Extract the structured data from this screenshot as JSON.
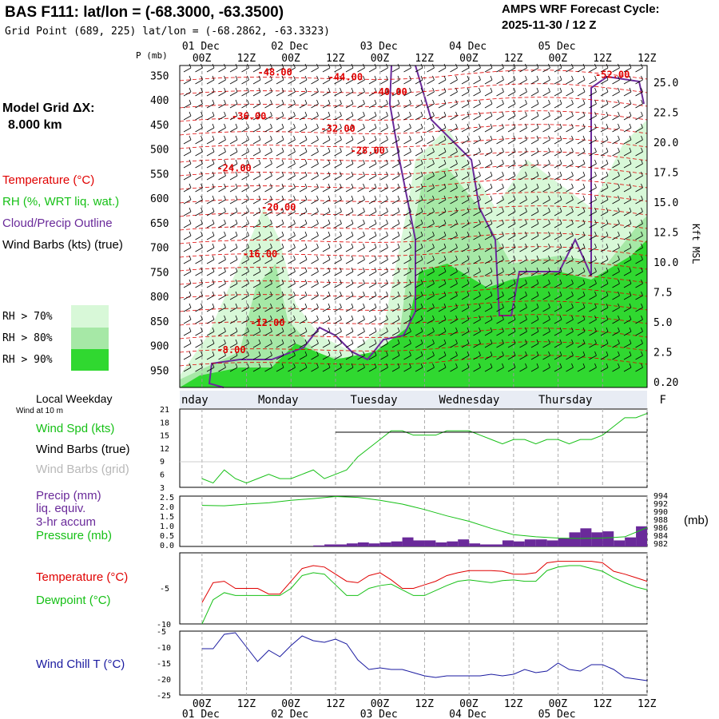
{
  "header": {
    "title": "BAS F111:  lat/lon = (-68.3000, -63.3500)",
    "grid_point": "Grid Point (689, 225) lat/lon = (-68.2862, -63.3323)",
    "cycle_label": "AMPS WRF Forecast Cycle:",
    "cycle_value": "2025-11-30 / 12  Z"
  },
  "left_panel": {
    "model_grid": "Model Grid ΔX:",
    "model_grid_value": "8.000 km",
    "legend_temperature": "Temperature (°C)",
    "legend_rh": "RH (%, WRT liq. wat.)",
    "legend_cloud": "Cloud/Precip Outline",
    "legend_wind": "Wind Barbs (kts) (true)",
    "rh70": "RH > 70%",
    "rh80": "RH > 80%",
    "rh90": "RH > 90%",
    "local_weekday": "Local Weekday",
    "wind_10m": "Wind at 10 m",
    "wind_spd": "Wind Spd (kts)",
    "barbs_true": "Wind Barbs (true)",
    "barbs_grid": "Wind Barbs (grid)",
    "precip1": "Precip (mm)",
    "precip2": "liq. equiv.",
    "precip3": "3-hr accum",
    "pressure": "Pressure (mb)",
    "temperature": "Temperature (°C)",
    "dewpoint": "Dewpoint (°C)",
    "windchill": "Wind Chill T (°C)",
    "mb_unit": "(mb)",
    "kft": "Kft MSL"
  },
  "colors": {
    "red": "#e00000",
    "green": "#16c016",
    "purple": "#6a2a9a",
    "blue": "#1a1aa0",
    "rh70": "#d8f8d8",
    "rh80": "#a6e8a6",
    "rh90": "#30d830"
  },
  "chart_data": {
    "time_axis": {
      "hours": [
        0,
        12,
        24,
        36,
        48,
        60,
        72,
        84,
        96,
        108,
        120
      ],
      "labels": [
        "00Z",
        "12Z",
        "00Z",
        "12Z",
        "00Z",
        "12Z",
        "00Z",
        "12Z",
        "00Z",
        "12Z",
        "12Z"
      ],
      "dates": [
        "01 Dec",
        "02 Dec",
        "03 Dec",
        "04 Dec",
        "05 Dec"
      ],
      "weekdays": [
        "nday",
        "Monday",
        "Tuesday",
        "Wednesday",
        "Thursday",
        "F"
      ]
    },
    "cross_section": {
      "type": "heatmap",
      "pressure_ticks": [
        "350",
        "400",
        "450",
        "500",
        "550",
        "600",
        "650",
        "700",
        "750",
        "800",
        "850",
        "900",
        "950"
      ],
      "p_mb_label": "P (mb)",
      "height_ticks": [
        "25.0",
        "22.5",
        "20.0",
        "17.5",
        "15.0",
        "12.5",
        "10.0",
        "7.5",
        "5.0",
        "2.5",
        "0.20"
      ],
      "temp_labels": [
        {
          "text": "-48.00",
          "h": 15,
          "p": 350
        },
        {
          "text": "-44.00",
          "h": 34,
          "p": 360
        },
        {
          "text": "-40.00",
          "h": 46,
          "p": 390
        },
        {
          "text": "-52.00",
          "h": 106,
          "p": 355
        },
        {
          "text": "-36.00",
          "h": 8,
          "p": 440
        },
        {
          "text": "-32.00",
          "h": 32,
          "p": 465
        },
        {
          "text": "-28.00",
          "h": 40,
          "p": 510
        },
        {
          "text": "-24.00",
          "h": 4,
          "p": 545
        },
        {
          "text": "-20.00",
          "h": 16,
          "p": 625
        },
        {
          "text": "-16.00",
          "h": 11,
          "p": 720
        },
        {
          "text": "-12.00",
          "h": 13,
          "p": 860
        },
        {
          "text": "-8.00",
          "h": 4,
          "p": 915
        }
      ]
    },
    "wind_speed": {
      "type": "line",
      "label": "Wind Spd (kts)",
      "yticks": [
        "21",
        "18",
        "15",
        "12",
        "9",
        "6",
        "3"
      ],
      "x": [
        0,
        3,
        6,
        9,
        12,
        15,
        18,
        21,
        24,
        27,
        30,
        33,
        36,
        39,
        42,
        45,
        48,
        51,
        54,
        57,
        60,
        63,
        66,
        69,
        72,
        75,
        78,
        81,
        84,
        87,
        90,
        93,
        96,
        99,
        102,
        105,
        108,
        111,
        114,
        117,
        120
      ],
      "values": [
        5,
        4,
        7,
        5,
        4,
        5,
        6,
        5,
        5,
        6,
        7,
        5,
        6,
        7,
        10,
        12,
        14,
        16,
        16,
        15,
        15,
        15,
        16,
        16,
        16,
        15,
        14,
        13,
        14,
        14,
        13,
        14,
        14,
        13,
        14,
        14,
        15,
        17,
        19,
        19,
        20
      ]
    },
    "precip_pressure": {
      "type": "bar",
      "precip_yticks": [
        "2.5",
        "2.0",
        "1.5",
        "1.0",
        "0.5",
        "0.0"
      ],
      "pressure_yticks": [
        "994",
        "992",
        "990",
        "988",
        "986",
        "984",
        "982"
      ],
      "precip_x": [
        33,
        36,
        39,
        42,
        45,
        48,
        51,
        54,
        57,
        60,
        63,
        66,
        69,
        72,
        75,
        78,
        81,
        84,
        87,
        90,
        93,
        96,
        99,
        102,
        105,
        108,
        111,
        114,
        117,
        120
      ],
      "precip": [
        0.05,
        0.1,
        0.1,
        0.15,
        0.2,
        0.15,
        0.2,
        0.25,
        0.45,
        0.3,
        0.3,
        0.2,
        0.25,
        0.35,
        0.15,
        0.1,
        0.1,
        0.3,
        0.25,
        0.35,
        0.35,
        0.3,
        0.4,
        0.7,
        0.9,
        0.7,
        0.75,
        0.3,
        0.45,
        1.0
      ],
      "pressure_x": [
        0,
        6,
        12,
        18,
        24,
        30,
        36,
        42,
        48,
        54,
        60,
        66,
        72,
        78,
        84,
        90,
        96,
        102,
        108,
        114,
        120
      ],
      "pressure": [
        991.8,
        991.7,
        992.1,
        992.4,
        993.0,
        993.4,
        993.9,
        993.7,
        993.0,
        992.1,
        990.8,
        989.3,
        988.0,
        986.3,
        984.8,
        984.3,
        984.0,
        983.9,
        984.0,
        984.3,
        986.5
      ]
    },
    "temp_dew": {
      "type": "line",
      "ylabel_ticks": [
        "-5",
        "-10"
      ],
      "x": [
        0,
        3,
        6,
        9,
        12,
        15,
        18,
        21,
        24,
        27,
        30,
        33,
        36,
        39,
        42,
        45,
        48,
        51,
        54,
        57,
        60,
        63,
        66,
        69,
        72,
        75,
        78,
        81,
        84,
        87,
        90,
        93,
        96,
        99,
        102,
        105,
        108,
        111,
        114,
        117,
        120
      ],
      "temperature": [
        -7,
        -4.2,
        -4,
        -5,
        -5,
        -5,
        -5.8,
        -5.8,
        -4,
        -2.2,
        -1.8,
        -2,
        -3,
        -4,
        -4.2,
        -3.2,
        -2.8,
        -3.8,
        -5,
        -5,
        -4.5,
        -4,
        -3.2,
        -2.8,
        -2.5,
        -2.5,
        -2.5,
        -2.6,
        -3,
        -3,
        -2.8,
        -1.4,
        -1.2,
        -1.2,
        -1.2,
        -1.2,
        -1.4,
        -2.6,
        -3,
        -3.5,
        -4
      ],
      "dewpoint": [
        -10,
        -6.6,
        -5.6,
        -6,
        -6,
        -6,
        -6,
        -6,
        -5,
        -3.2,
        -2.8,
        -3,
        -4.5,
        -6,
        -6,
        -5,
        -4.6,
        -4.4,
        -5.2,
        -6,
        -6,
        -5.3,
        -4.6,
        -4,
        -3.8,
        -4,
        -4.2,
        -3.9,
        -3.8,
        -4,
        -4,
        -2.5,
        -2,
        -1.8,
        -1.8,
        -2.2,
        -2.6,
        -3.5,
        -4.2,
        -4.8,
        -5.2
      ]
    },
    "windchill": {
      "type": "line",
      "yticks": [
        "-5",
        "-10",
        "-15",
        "-20",
        "-25"
      ],
      "x": [
        0,
        3,
        6,
        9,
        12,
        15,
        18,
        21,
        24,
        27,
        30,
        33,
        36,
        39,
        42,
        45,
        48,
        51,
        54,
        57,
        60,
        63,
        66,
        69,
        72,
        75,
        78,
        81,
        84,
        87,
        90,
        93,
        96,
        99,
        102,
        105,
        108,
        111,
        114,
        117,
        120
      ],
      "values": [
        -10.5,
        -10.5,
        -6,
        -5.5,
        -10,
        -14.5,
        -11,
        -13,
        -9.5,
        -6.5,
        -8,
        -8.5,
        -7.5,
        -9,
        -14,
        -17,
        -16.5,
        -17,
        -17,
        -18,
        -19,
        -19.5,
        -19,
        -19,
        -19,
        -19,
        -18.5,
        -19,
        -18.5,
        -17,
        -18,
        -17.5,
        -15,
        -17,
        -17.5,
        -15.5,
        -15.5,
        -17,
        -19.5,
        -20,
        -20.5
      ]
    }
  }
}
